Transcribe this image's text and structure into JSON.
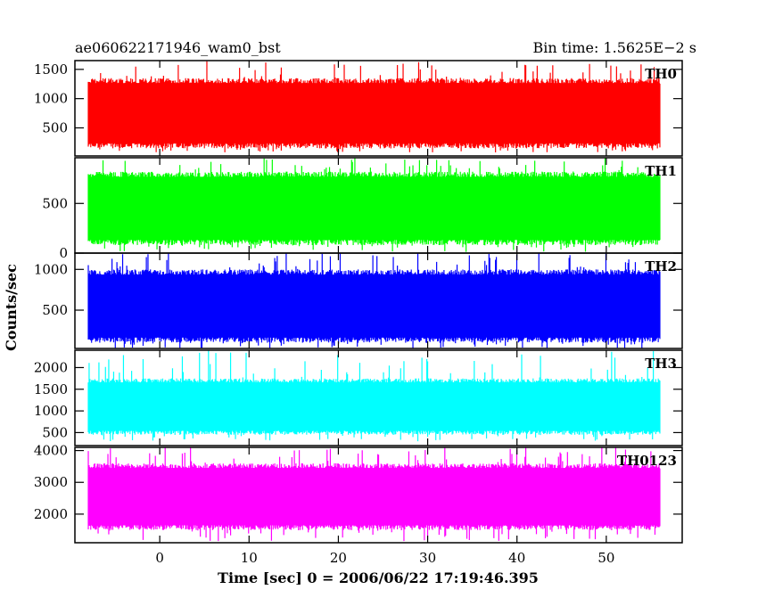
{
  "header": {
    "title_left": "ae060622171946_wam0_bst",
    "title_right": "Bin time: 1.5625E−2 s"
  },
  "axes": {
    "xlabel": "Time [sec] 0 = 2006/06/22 17:19:46.395",
    "ylabel": "Counts/sec"
  },
  "chart_data": {
    "type": "line",
    "style": "stacked light-curve panels (binned histogram, filled appearance)",
    "bin_time_s": 0.015625,
    "x_range": [
      -8,
      56
    ],
    "xlim": [
      -9.5,
      58.5
    ],
    "x_ticks": [
      0,
      10,
      20,
      30,
      40,
      50
    ],
    "x_tick_labels": [
      "0",
      "10",
      "20",
      "30",
      "40",
      "50"
    ],
    "grid": false,
    "panels": [
      {
        "name": "TH0",
        "color": "#ff0000",
        "ylim": [
          20,
          1650
        ],
        "yticks": [
          500,
          1000,
          1500
        ],
        "ytick_labels": [
          "500",
          "1000",
          "1500"
        ],
        "typical_range": [
          150,
          1350
        ],
        "min_approx": 80,
        "max_approx": 1650
      },
      {
        "name": "TH1",
        "color": "#00ff00",
        "ylim": [
          0,
          960
        ],
        "yticks": [
          0,
          500
        ],
        "ytick_labels": [
          "0",
          "500"
        ],
        "typical_range": [
          80,
          820
        ],
        "min_approx": 10,
        "max_approx": 960
      },
      {
        "name": "TH2",
        "color": "#0000ff",
        "ylim": [
          30,
          1200
        ],
        "yticks": [
          500,
          1000
        ],
        "ytick_labels": [
          "500",
          "1000"
        ],
        "typical_range": [
          100,
          1000
        ],
        "min_approx": 30,
        "max_approx": 1200
      },
      {
        "name": "TH3",
        "color": "#00ffff",
        "ylim": [
          200,
          2400
        ],
        "yticks": [
          500,
          1000,
          1500,
          2000
        ],
        "ytick_labels": [
          "500",
          "1000",
          "1500",
          "2000"
        ],
        "typical_range": [
          450,
          1750
        ],
        "min_approx": 300,
        "max_approx": 2400
      },
      {
        "name": "TH0123",
        "color": "#ff00ff",
        "ylim": [
          1100,
          4100
        ],
        "yticks": [
          2000,
          3000,
          4000
        ],
        "ytick_labels": [
          "2000",
          "3000",
          "4000"
        ],
        "typical_range": [
          1500,
          3600
        ],
        "min_approx": 1150,
        "max_approx": 4100
      }
    ]
  }
}
